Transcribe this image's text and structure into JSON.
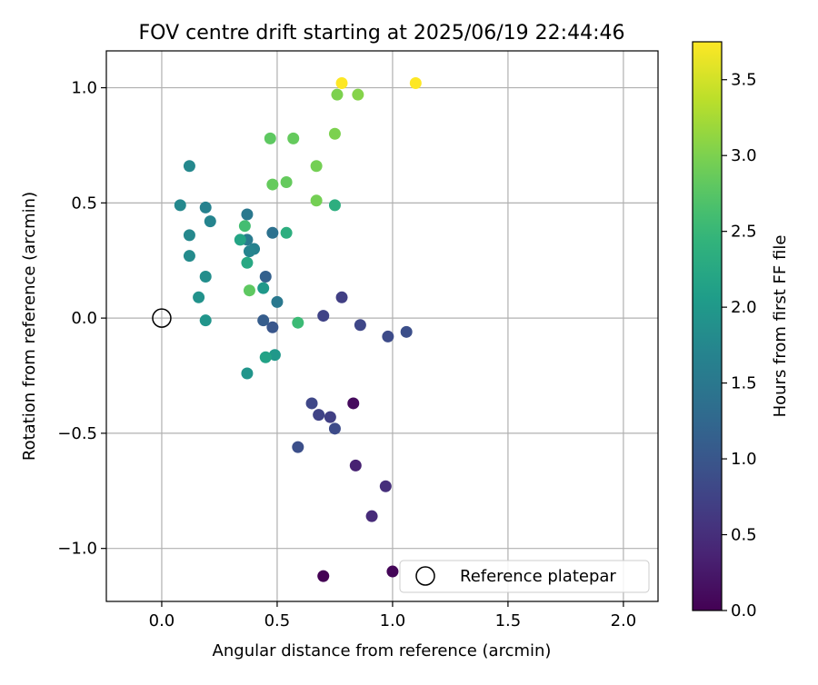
{
  "chart_data": {
    "type": "scatter",
    "title": "FOV centre drift starting at 2025/06/19 22:44:46",
    "xlabel": "Angular distance from reference (arcmin)",
    "ylabel": "Rotation from reference (arcmin)",
    "xlim": [
      -0.24,
      2.15
    ],
    "ylim": [
      -1.23,
      1.16
    ],
    "xticks": [
      0.0,
      0.5,
      1.0,
      1.5,
      2.0
    ],
    "xtick_labels": [
      "0.0",
      "0.5",
      "1.0",
      "1.5",
      "2.0"
    ],
    "yticks": [
      -1.0,
      -0.5,
      0.0,
      0.5,
      1.0
    ],
    "ytick_labels": [
      "−1.0",
      "−0.5",
      "0.0",
      "0.5",
      "1.0"
    ],
    "grid": true,
    "legend_position": "lower-right",
    "legend": [
      {
        "label": "Reference platepar",
        "marker": "hollow-circle",
        "color": "#000000"
      }
    ],
    "reference_point": {
      "x": 0.0,
      "y": 0.0
    },
    "colorbar": {
      "label": "Hours from first FF file",
      "min": 0.0,
      "max": 3.75,
      "ticks": [
        0.0,
        0.5,
        1.0,
        1.5,
        2.0,
        2.5,
        3.0,
        3.5
      ],
      "tick_labels": [
        "0.0",
        "0.5",
        "1.0",
        "1.5",
        "2.0",
        "2.5",
        "3.0",
        "3.5"
      ],
      "colormap": "viridis"
    },
    "points": [
      {
        "x": 0.7,
        "y": -1.12,
        "t": 0.0
      },
      {
        "x": 1.0,
        "y": -1.1,
        "t": 0.05
      },
      {
        "x": 0.83,
        "y": -0.37,
        "t": 0.1
      },
      {
        "x": 0.84,
        "y": -0.64,
        "t": 0.35
      },
      {
        "x": 0.91,
        "y": -0.86,
        "t": 0.45
      },
      {
        "x": 0.97,
        "y": -0.73,
        "t": 0.5
      },
      {
        "x": 0.73,
        "y": -0.43,
        "t": 0.7
      },
      {
        "x": 0.68,
        "y": -0.42,
        "t": 0.75
      },
      {
        "x": 0.65,
        "y": -0.37,
        "t": 0.8
      },
      {
        "x": 0.75,
        "y": -0.48,
        "t": 0.85
      },
      {
        "x": 0.59,
        "y": -0.56,
        "t": 0.9
      },
      {
        "x": 0.78,
        "y": 0.09,
        "t": 0.7
      },
      {
        "x": 0.7,
        "y": 0.01,
        "t": 0.75
      },
      {
        "x": 0.86,
        "y": -0.03,
        "t": 0.8
      },
      {
        "x": 0.98,
        "y": -0.08,
        "t": 0.85
      },
      {
        "x": 1.06,
        "y": -0.06,
        "t": 0.9
      },
      {
        "x": 0.48,
        "y": -0.04,
        "t": 1.0
      },
      {
        "x": 0.44,
        "y": -0.01,
        "t": 1.1
      },
      {
        "x": 0.45,
        "y": 0.18,
        "t": 1.15
      },
      {
        "x": 0.5,
        "y": 0.07,
        "t": 1.5
      },
      {
        "x": 0.48,
        "y": 0.37,
        "t": 1.4
      },
      {
        "x": 0.37,
        "y": 0.45,
        "t": 1.5
      },
      {
        "x": 0.37,
        "y": 0.34,
        "t": 1.55
      },
      {
        "x": 0.4,
        "y": 0.3,
        "t": 1.65
      },
      {
        "x": 0.38,
        "y": 0.29,
        "t": 1.7
      },
      {
        "x": 0.12,
        "y": 0.66,
        "t": 1.75
      },
      {
        "x": 0.08,
        "y": 0.49,
        "t": 1.75
      },
      {
        "x": 0.21,
        "y": 0.42,
        "t": 1.7
      },
      {
        "x": 0.19,
        "y": 0.48,
        "t": 1.65
      },
      {
        "x": 0.12,
        "y": 0.36,
        "t": 1.75
      },
      {
        "x": 0.12,
        "y": 0.27,
        "t": 1.8
      },
      {
        "x": 0.19,
        "y": 0.18,
        "t": 1.85
      },
      {
        "x": 0.16,
        "y": 0.09,
        "t": 1.9
      },
      {
        "x": 0.19,
        "y": -0.01,
        "t": 1.95
      },
      {
        "x": 0.37,
        "y": -0.24,
        "t": 1.95
      },
      {
        "x": 0.49,
        "y": -0.16,
        "t": 2.0
      },
      {
        "x": 0.45,
        "y": -0.17,
        "t": 2.15
      },
      {
        "x": 0.44,
        "y": 0.13,
        "t": 2.0
      },
      {
        "x": 0.34,
        "y": 0.34,
        "t": 2.2
      },
      {
        "x": 0.37,
        "y": 0.24,
        "t": 2.25
      },
      {
        "x": 0.54,
        "y": 0.37,
        "t": 2.35
      },
      {
        "x": 0.75,
        "y": 0.49,
        "t": 2.35
      },
      {
        "x": 0.59,
        "y": -0.02,
        "t": 2.55
      },
      {
        "x": 0.36,
        "y": 0.4,
        "t": 2.6
      },
      {
        "x": 0.38,
        "y": 0.12,
        "t": 2.8
      },
      {
        "x": 0.47,
        "y": 0.78,
        "t": 2.8
      },
      {
        "x": 0.57,
        "y": 0.78,
        "t": 2.85
      },
      {
        "x": 0.48,
        "y": 0.58,
        "t": 2.85
      },
      {
        "x": 0.54,
        "y": 0.59,
        "t": 2.85
      },
      {
        "x": 0.67,
        "y": 0.51,
        "t": 2.95
      },
      {
        "x": 0.67,
        "y": 0.66,
        "t": 2.95
      },
      {
        "x": 0.75,
        "y": 0.8,
        "t": 3.0
      },
      {
        "x": 0.76,
        "y": 0.97,
        "t": 3.0
      },
      {
        "x": 0.85,
        "y": 0.97,
        "t": 3.05
      },
      {
        "x": 0.78,
        "y": 1.02,
        "t": 3.75
      },
      {
        "x": 1.1,
        "y": 1.02,
        "t": 3.75
      }
    ]
  }
}
